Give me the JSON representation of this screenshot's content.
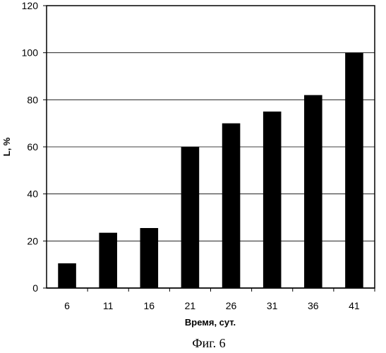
{
  "chart_data": {
    "type": "bar",
    "categories": [
      "6",
      "11",
      "16",
      "21",
      "26",
      "31",
      "36",
      "41"
    ],
    "values": [
      10.5,
      23.5,
      25.5,
      60,
      70,
      75,
      82,
      100
    ],
    "xlabel": "Время, сут.",
    "ylabel": "L, %",
    "ylim": [
      0,
      120
    ],
    "yticks": [
      "0",
      "20",
      "40",
      "60",
      "80",
      "100",
      "120"
    ],
    "grid": true,
    "bar_color": "#000000",
    "caption": "Фиг. 6"
  }
}
